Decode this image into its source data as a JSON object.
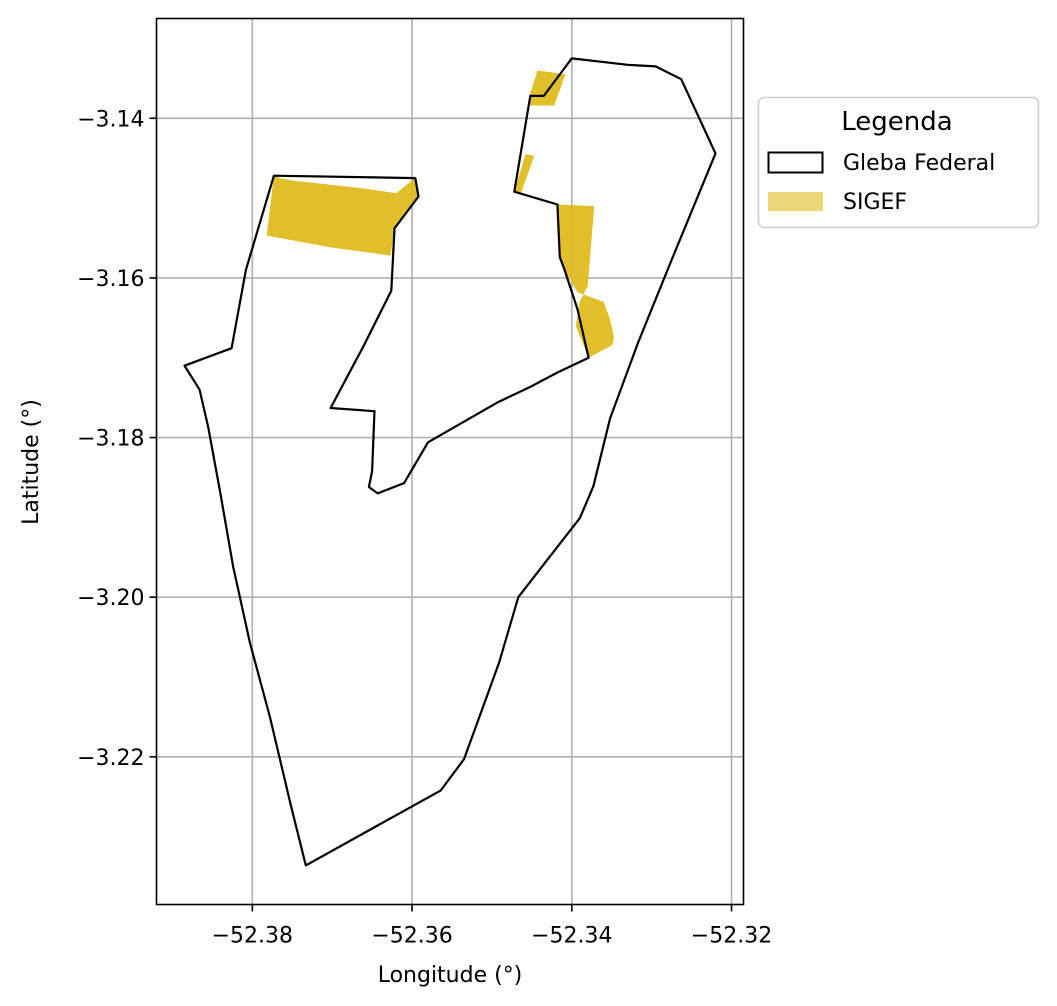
{
  "chart_data": {
    "type": "map",
    "xlabel": "Longitude (°)",
    "ylabel": "Latitude (°)",
    "xlim": [
      -52.392,
      -52.3185
    ],
    "ylim": [
      -3.2385,
      -3.1275
    ],
    "xticks": [
      -52.38,
      -52.36,
      -52.34,
      -52.32
    ],
    "xtick_labels": [
      "−52.38",
      "−52.36",
      "−52.34",
      "−52.32"
    ],
    "yticks": [
      -3.14,
      -3.16,
      -3.18,
      -3.2,
      -3.22
    ],
    "ytick_labels": [
      "−3.14",
      "−3.16",
      "−3.18",
      "−3.20",
      "−3.22"
    ],
    "grid": true,
    "legend": {
      "title": "Legenda",
      "placement": "outside upper right",
      "entries": [
        {
          "label": "Gleba Federal",
          "style": "outline",
          "edge_color": "#000000",
          "fill": "none"
        },
        {
          "label": "SIGEF",
          "style": "fill",
          "fill": "#dfbc1f",
          "alpha": 0.6
        }
      ]
    },
    "layers": [
      {
        "name": "Gleba Federal",
        "edge_color": "#000000",
        "fill": "none",
        "polygons": [
          [
            [
              -52.3773,
              -3.1472
            ],
            [
              -52.3596,
              -3.1475
            ],
            [
              -52.3592,
              -3.1498
            ],
            [
              -52.3622,
              -3.1538
            ],
            [
              -52.3626,
              -3.1616
            ],
            [
              -52.366,
              -3.1684
            ],
            [
              -52.3702,
              -3.1763
            ],
            [
              -52.3647,
              -3.1767
            ],
            [
              -52.365,
              -3.1842
            ],
            [
              -52.3654,
              -3.1862
            ],
            [
              -52.3643,
              -3.187
            ],
            [
              -52.361,
              -3.1857
            ],
            [
              -52.358,
              -3.1806
            ],
            [
              -52.3493,
              -3.1756
            ],
            [
              -52.3453,
              -3.1737
            ],
            [
              -52.3417,
              -3.1718
            ],
            [
              -52.3379,
              -3.17
            ],
            [
              -52.3393,
              -3.1639
            ],
            [
              -52.3409,
              -3.159
            ],
            [
              -52.3415,
              -3.1574
            ],
            [
              -52.3418,
              -3.1508
            ],
            [
              -52.3472,
              -3.1492
            ],
            [
              -52.3452,
              -3.1372
            ],
            [
              -52.3435,
              -3.1372
            ],
            [
              -52.34,
              -3.1325
            ],
            [
              -52.333,
              -3.1333
            ],
            [
              -52.3295,
              -3.1335
            ],
            [
              -52.3263,
              -3.1351
            ],
            [
              -52.322,
              -3.1444
            ],
            [
              -52.3274,
              -3.1575
            ],
            [
              -52.3317,
              -3.1681
            ],
            [
              -52.3352,
              -3.1776
            ],
            [
              -52.3373,
              -3.1861
            ],
            [
              -52.339,
              -3.1901
            ],
            [
              -52.3436,
              -3.196
            ],
            [
              -52.3467,
              -3.2
            ],
            [
              -52.3491,
              -3.2082
            ],
            [
              -52.3535,
              -3.2203
            ],
            [
              -52.3564,
              -3.2242
            ],
            [
              -52.3733,
              -3.2336
            ],
            [
              -52.3752,
              -3.226
            ],
            [
              -52.3778,
              -3.215
            ],
            [
              -52.3803,
              -3.2057
            ],
            [
              -52.3822,
              -3.1971
            ],
            [
              -52.3824,
              -3.1962
            ],
            [
              -52.384,
              -3.187
            ],
            [
              -52.3855,
              -3.1788
            ],
            [
              -52.3866,
              -3.174
            ],
            [
              -52.3885,
              -3.171
            ],
            [
              -52.3826,
              -3.1688
            ],
            [
              -52.3808,
              -3.159
            ]
          ]
        ]
      },
      {
        "name": "SIGEF",
        "fill": "#dfbc1f",
        "alpha": 0.95,
        "polygons": [
          [
            [
              -52.3773,
              -3.1472
            ],
            [
              -52.3765,
              -3.1475
            ],
            [
              -52.375,
              -3.1478
            ],
            [
              -52.366,
              -3.1488
            ],
            [
              -52.362,
              -3.1494
            ],
            [
              -52.3605,
              -3.1482
            ],
            [
              -52.3596,
              -3.1475
            ],
            [
              -52.3592,
              -3.1498
            ],
            [
              -52.3622,
              -3.1538
            ],
            [
              -52.3627,
              -3.1572
            ],
            [
              -52.37,
              -3.1562
            ],
            [
              -52.3782,
              -3.1547
            ]
          ],
          [
            [
              -52.3443,
              -3.134
            ],
            [
              -52.3453,
              -3.1372
            ],
            [
              -52.3455,
              -3.1384
            ],
            [
              -52.3422,
              -3.1384
            ],
            [
              -52.3408,
              -3.1345
            ]
          ],
          [
            [
              -52.3458,
              -3.1445
            ],
            [
              -52.3447,
              -3.1447
            ],
            [
              -52.3464,
              -3.1495
            ],
            [
              -52.3472,
              -3.1492
            ]
          ],
          [
            [
              -52.3418,
              -3.1508
            ],
            [
              -52.3372,
              -3.151
            ],
            [
              -52.338,
              -3.161
            ],
            [
              -52.339,
              -3.163
            ],
            [
              -52.3395,
              -3.166
            ],
            [
              -52.3379,
              -3.17
            ],
            [
              -52.3349,
              -3.1684
            ],
            [
              -52.3347,
              -3.1674
            ],
            [
              -52.3352,
              -3.1652
            ],
            [
              -52.336,
              -3.163
            ],
            [
              -52.3393,
              -3.1618
            ],
            [
              -52.3409,
              -3.159
            ],
            [
              -52.3415,
              -3.1574
            ]
          ]
        ]
      }
    ]
  }
}
